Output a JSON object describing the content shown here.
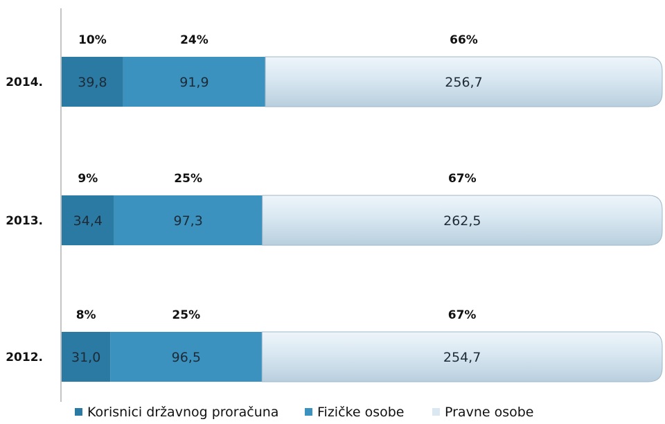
{
  "chart_data": {
    "type": "bar",
    "orientation": "horizontal",
    "stacked": true,
    "categories": [
      "2014.",
      "2013.",
      "2012."
    ],
    "series": [
      {
        "name": "Korisnici državnog proračuna",
        "color": "#2a7aa3",
        "values": [
          39.8,
          34.4,
          31.0
        ],
        "value_labels": [
          "39,8",
          "34,4",
          "31,0"
        ],
        "percent_labels": [
          "10%",
          "9%",
          "8%"
        ]
      },
      {
        "name": "Fizičke osobe",
        "color": "#3b92bf",
        "values": [
          91.9,
          97.3,
          96.5
        ],
        "value_labels": [
          "91,9",
          "97,3",
          "96,5"
        ],
        "percent_labels": [
          "24%",
          "25%",
          "25%"
        ]
      },
      {
        "name": "Pravne osobe",
        "color": "#d3e4ef",
        "values": [
          256.7,
          262.5,
          254.7
        ],
        "value_labels": [
          "256,7",
          "262,5",
          "254,7"
        ],
        "percent_labels": [
          "66%",
          "67%",
          "67%"
        ]
      }
    ],
    "legend_position": "bottom",
    "grid": false
  }
}
